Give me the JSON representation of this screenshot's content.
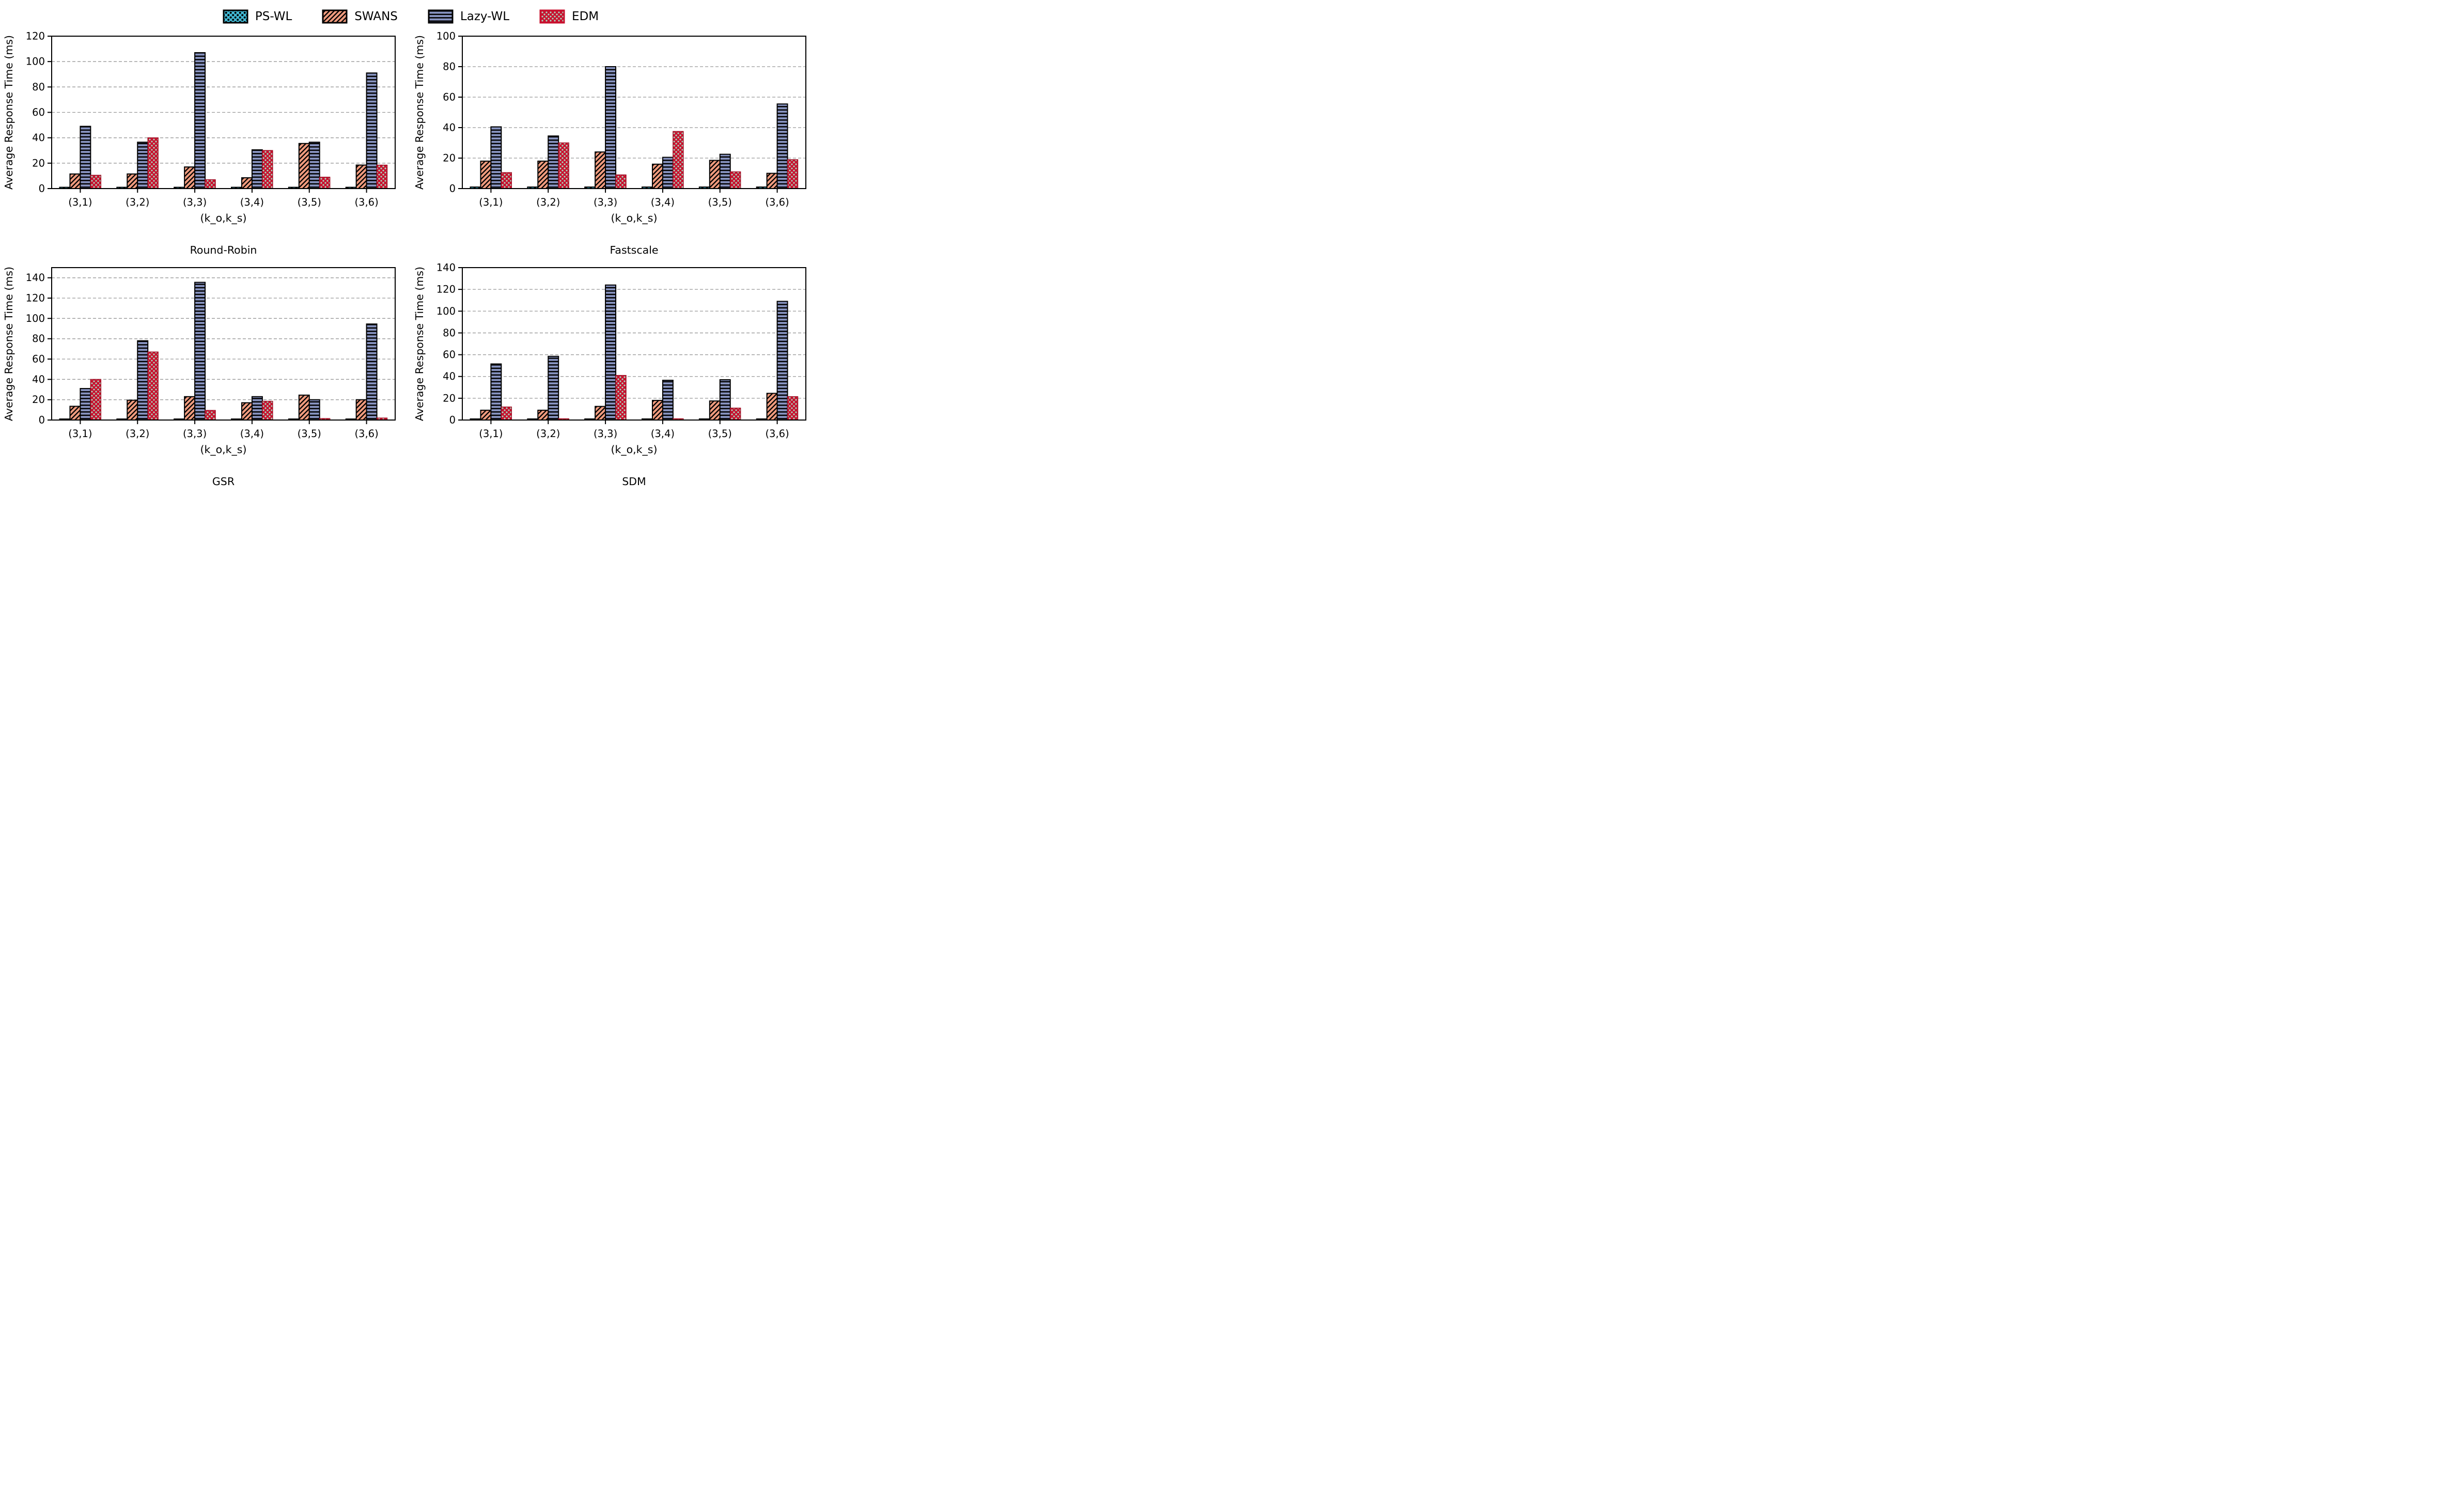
{
  "figure": {
    "ylabel": "Average Response Time (ms)",
    "xlabel": "(k_o,k_s)",
    "categories": [
      "(3,1)",
      "(3,2)",
      "(3,3)",
      "(3,4)",
      "(3,5)",
      "(3,6)"
    ],
    "series_names": [
      "PS-WL",
      "SWANS",
      "Lazy-WL",
      "EDM"
    ]
  },
  "legend": {
    "items": [
      {
        "label": "PS-WL",
        "swatch": "teal-black-dots"
      },
      {
        "label": "SWANS",
        "swatch": "salmon-diagonal-hatch"
      },
      {
        "label": "Lazy-WL",
        "swatch": "bluegray-horizontal-stripes"
      },
      {
        "label": "EDM",
        "swatch": "crimson-mint-dots"
      }
    ]
  },
  "colors": {
    "ps_wl_fill": "#41B7D2",
    "swans_fill": "#F09B7E",
    "lazy_wl_fill": "#8793C0",
    "edm_fill": "#C8102E",
    "edm_dot": "#A8D8C0",
    "hatch": "#000000",
    "bar_edge": "#000000",
    "edm_edge": "#9E0C22",
    "gridline": "#999999",
    "axis": "#000000",
    "text": "#000000"
  },
  "chart_data": [
    {
      "type": "bar",
      "title": "Round-Robin",
      "xlabel": "(k_o,k_s)",
      "ylabel": "Average Response Time (ms)",
      "categories": [
        "(3,1)",
        "(3,2)",
        "(3,3)",
        "(3,4)",
        "(3,5)",
        "(3,6)"
      ],
      "ylim": [
        0,
        120
      ],
      "yticks": [
        0,
        20,
        40,
        60,
        80,
        100,
        120
      ],
      "grid": "dashed-horizontal",
      "series": [
        {
          "name": "PS-WL",
          "values": [
            1,
            1,
            1,
            1,
            1,
            1
          ]
        },
        {
          "name": "SWANS",
          "values": [
            11.5,
            11.5,
            17,
            8.5,
            35.5,
            18.5
          ]
        },
        {
          "name": "Lazy-WL",
          "values": [
            49,
            36.5,
            107,
            30.5,
            36.5,
            91
          ]
        },
        {
          "name": "EDM",
          "values": [
            10.5,
            40,
            7,
            30,
            9,
            18.5
          ]
        }
      ]
    },
    {
      "type": "bar",
      "title": "Fastscale",
      "xlabel": "(k_o,k_s)",
      "ylabel": "Average Response Time (ms)",
      "categories": [
        "(3,1)",
        "(3,2)",
        "(3,3)",
        "(3,4)",
        "(3,5)",
        "(3,6)"
      ],
      "ylim": [
        0,
        100
      ],
      "yticks": [
        0,
        20,
        40,
        60,
        80,
        100
      ],
      "grid": "dashed-horizontal",
      "series": [
        {
          "name": "PS-WL",
          "values": [
            1,
            1,
            1,
            1,
            1,
            1
          ]
        },
        {
          "name": "SWANS",
          "values": [
            18,
            18,
            24,
            16,
            18.5,
            10
          ]
        },
        {
          "name": "Lazy-WL",
          "values": [
            40.5,
            34.5,
            80,
            20.5,
            22.5,
            55.5
          ]
        },
        {
          "name": "EDM",
          "values": [
            10.5,
            30,
            9,
            37.5,
            11,
            19
          ]
        }
      ]
    },
    {
      "type": "bar",
      "title": "GSR",
      "xlabel": "(k_o,k_s)",
      "ylabel": "Average Response Time (ms)",
      "categories": [
        "(3,1)",
        "(3,2)",
        "(3,3)",
        "(3,4)",
        "(3,5)",
        "(3,6)"
      ],
      "ylim": [
        0,
        150
      ],
      "yticks": [
        0,
        20,
        40,
        60,
        80,
        100,
        120,
        140
      ],
      "grid": "dashed-horizontal",
      "series": [
        {
          "name": "PS-WL",
          "values": [
            1,
            1,
            1,
            1,
            1,
            1
          ]
        },
        {
          "name": "SWANS",
          "values": [
            13.5,
            19.5,
            23,
            17,
            24.5,
            20
          ]
        },
        {
          "name": "Lazy-WL",
          "values": [
            31,
            78,
            135.5,
            23,
            20,
            94.5
          ]
        },
        {
          "name": "EDM",
          "values": [
            40,
            67,
            9.5,
            18.5,
            1.5,
            2
          ]
        }
      ]
    },
    {
      "type": "bar",
      "title": "SDM",
      "xlabel": "(k_o,k_s)",
      "ylabel": "Average Response Time (ms)",
      "categories": [
        "(3,1)",
        "(3,2)",
        "(3,3)",
        "(3,4)",
        "(3,5)",
        "(3,6)"
      ],
      "ylim": [
        0,
        140
      ],
      "yticks": [
        0,
        20,
        40,
        60,
        80,
        100,
        120,
        140
      ],
      "grid": "dashed-horizontal",
      "series": [
        {
          "name": "PS-WL",
          "values": [
            1,
            1,
            1,
            1,
            1,
            1
          ]
        },
        {
          "name": "SWANS",
          "values": [
            9,
            9,
            12.5,
            18,
            17.5,
            24.5
          ]
        },
        {
          "name": "Lazy-WL",
          "values": [
            51.5,
            58.5,
            124,
            36.5,
            37,
            109
          ]
        },
        {
          "name": "EDM",
          "values": [
            12,
            1.2,
            41,
            1.2,
            11,
            21.5
          ]
        }
      ]
    }
  ]
}
